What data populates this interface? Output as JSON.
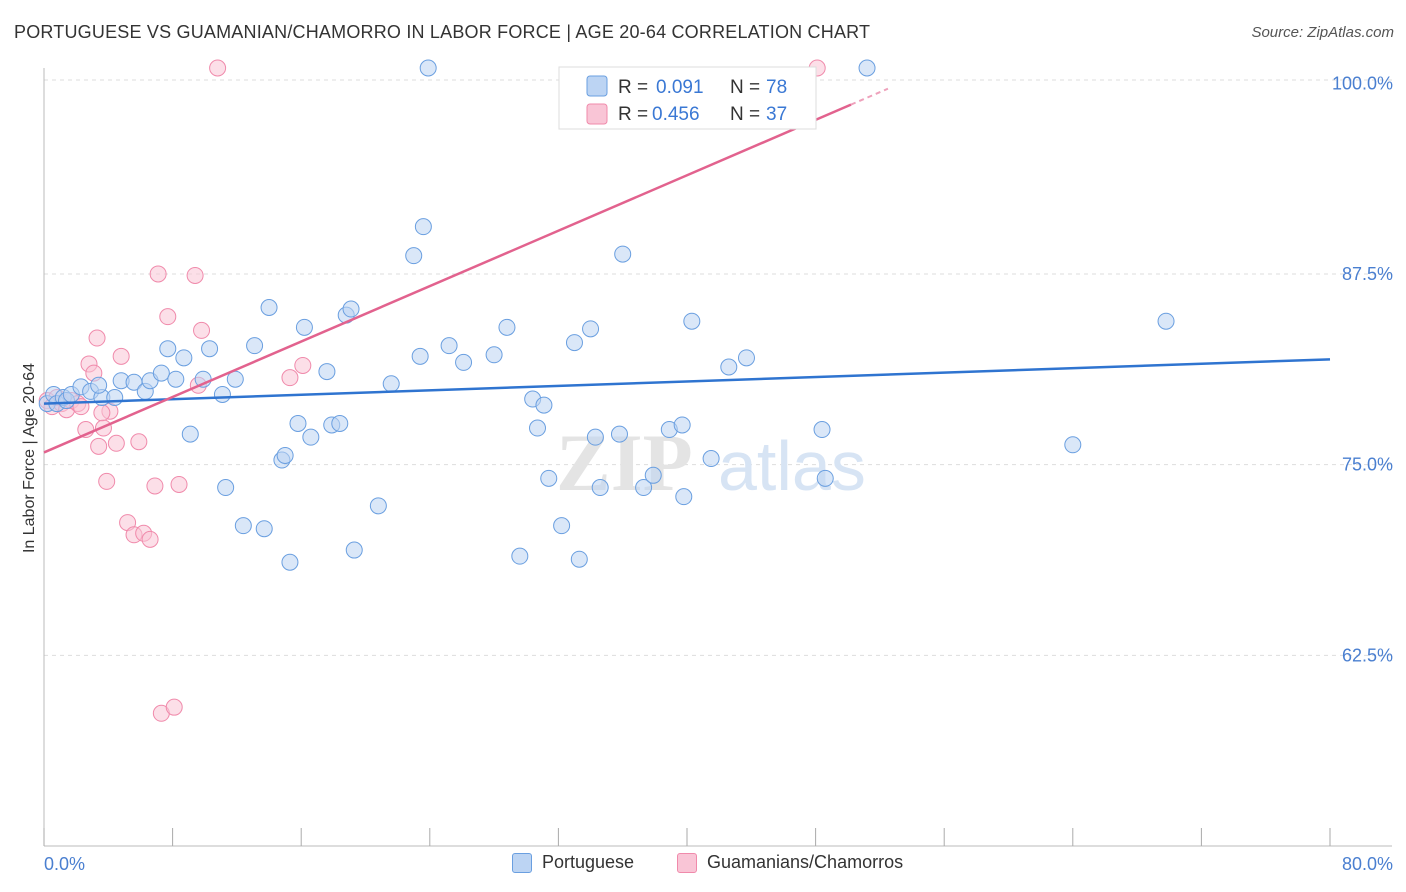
{
  "title": "PORTUGUESE VS GUAMANIAN/CHAMORRO IN LABOR FORCE | AGE 20-64 CORRELATION CHART",
  "source": "Source: ZipAtlas.com",
  "watermark": {
    "zip": "ZIP",
    "atlas": "atlas"
  },
  "legend": {
    "r_label": "R =",
    "n_label": "N =",
    "series": [
      {
        "name": "Portuguese",
        "r": "0.091",
        "n": "78"
      },
      {
        "name": "Guamanians/Chamorros",
        "r": "0.456",
        "n": "37"
      }
    ]
  },
  "chart_data": {
    "type": "scatter",
    "title": "PORTUGUESE VS GUAMANIAN/CHAMORRO IN LABOR FORCE | AGE 20-64 CORRELATION CHART",
    "xlabel": "",
    "ylabel": "In Labor Force | Age 20-64",
    "xlim": [
      0,
      80
    ],
    "ylim": [
      50,
      101
    ],
    "x_tick_labels": [
      "0.0%",
      "80.0%"
    ],
    "y_ticks": [
      62.5,
      75.0,
      87.5,
      100.0
    ],
    "y_tick_labels": [
      "62.5%",
      "75.0%",
      "87.5%",
      "100.0%"
    ],
    "grid": true,
    "legend_position": "top-center",
    "colors": {
      "Portuguese": "#6a9fe0",
      "Guamanians/Chamorros": "#f08aab",
      "blue_line": "#2f74d0",
      "pink_line": "#e2628e",
      "axis_text": "#4a7fd0"
    },
    "series": [
      {
        "name": "Portuguese",
        "r": 0.091,
        "n": 78,
        "trend": {
          "x0": 0,
          "y0": 79.0,
          "x1": 80,
          "y1": 81.9
        },
        "points": [
          [
            0.2,
            79.0
          ],
          [
            0.6,
            79.6
          ],
          [
            0.8,
            79.0
          ],
          [
            1.2,
            79.4
          ],
          [
            1.4,
            79.2
          ],
          [
            1.7,
            79.6
          ],
          [
            2.3,
            80.1
          ],
          [
            2.9,
            79.8
          ],
          [
            3.6,
            79.4
          ],
          [
            4.4,
            79.4
          ],
          [
            3.4,
            80.2
          ],
          [
            4.8,
            80.5
          ],
          [
            5.6,
            80.4
          ],
          [
            6.3,
            79.8
          ],
          [
            6.6,
            80.5
          ],
          [
            7.3,
            81.0
          ],
          [
            7.7,
            82.6
          ],
          [
            8.2,
            80.6
          ],
          [
            8.7,
            82.0
          ],
          [
            9.1,
            77.0
          ],
          [
            9.9,
            80.6
          ],
          [
            10.3,
            82.6
          ],
          [
            11.1,
            79.6
          ],
          [
            11.3,
            73.5
          ],
          [
            11.9,
            80.6
          ],
          [
            12.4,
            71.0
          ],
          [
            13.1,
            82.8
          ],
          [
            13.7,
            70.8
          ],
          [
            14.0,
            85.3
          ],
          [
            14.8,
            75.3
          ],
          [
            15.0,
            75.6
          ],
          [
            15.3,
            68.6
          ],
          [
            15.8,
            77.7
          ],
          [
            16.2,
            84.0
          ],
          [
            16.6,
            76.8
          ],
          [
            17.6,
            81.1
          ],
          [
            17.9,
            77.6
          ],
          [
            18.4,
            77.7
          ],
          [
            18.8,
            84.8
          ],
          [
            19.1,
            85.2
          ],
          [
            20.8,
            72.3
          ],
          [
            21.6,
            80.3
          ],
          [
            23.0,
            88.7
          ],
          [
            23.4,
            82.1
          ],
          [
            23.6,
            90.6
          ],
          [
            23.9,
            101.0
          ],
          [
            25.2,
            82.8
          ],
          [
            26.1,
            81.7
          ],
          [
            28.0,
            82.2
          ],
          [
            28.8,
            84.0
          ],
          [
            29.6,
            69.0
          ],
          [
            30.4,
            79.3
          ],
          [
            30.7,
            77.4
          ],
          [
            31.1,
            78.9
          ],
          [
            31.4,
            74.1
          ],
          [
            32.2,
            71.0
          ],
          [
            33.0,
            83.0
          ],
          [
            33.3,
            68.8
          ],
          [
            34.0,
            83.9
          ],
          [
            34.3,
            76.8
          ],
          [
            34.6,
            73.5
          ],
          [
            35.8,
            77.0
          ],
          [
            36.0,
            88.8
          ],
          [
            37.3,
            73.5
          ],
          [
            37.9,
            74.3
          ],
          [
            38.9,
            77.3
          ],
          [
            39.7,
            77.6
          ],
          [
            39.8,
            72.9
          ],
          [
            40.3,
            84.4
          ],
          [
            41.5,
            75.4
          ],
          [
            42.6,
            81.4
          ],
          [
            43.7,
            82.0
          ],
          [
            48.4,
            77.3
          ],
          [
            48.6,
            74.1
          ],
          [
            51.2,
            101.0
          ],
          [
            64.0,
            76.3
          ],
          [
            69.8,
            84.4
          ],
          [
            19.3,
            69.4
          ]
        ]
      },
      {
        "name": "Guamanians/Chamorros",
        "r": 0.456,
        "n": 37,
        "trend": {
          "x0": 0,
          "y0": 75.8,
          "x1": 50.2,
          "y1": 98.6
        },
        "points": [
          [
            0.2,
            79.2
          ],
          [
            0.5,
            78.8
          ],
          [
            0.8,
            79.4
          ],
          [
            1.1,
            79.0
          ],
          [
            1.4,
            78.6
          ],
          [
            1.7,
            79.2
          ],
          [
            2.1,
            79.0
          ],
          [
            2.3,
            78.8
          ],
          [
            2.6,
            77.3
          ],
          [
            2.8,
            81.6
          ],
          [
            3.1,
            81.0
          ],
          [
            3.3,
            83.3
          ],
          [
            3.4,
            76.2
          ],
          [
            3.7,
            77.4
          ],
          [
            3.9,
            73.9
          ],
          [
            4.1,
            78.5
          ],
          [
            4.5,
            76.4
          ],
          [
            4.8,
            82.1
          ],
          [
            5.2,
            71.2
          ],
          [
            5.6,
            70.4
          ],
          [
            5.9,
            76.5
          ],
          [
            6.2,
            70.5
          ],
          [
            6.6,
            70.1
          ],
          [
            6.9,
            73.6
          ],
          [
            7.1,
            87.5
          ],
          [
            7.3,
            58.7
          ],
          [
            7.7,
            84.7
          ],
          [
            8.1,
            59.1
          ],
          [
            8.4,
            73.7
          ],
          [
            9.4,
            87.4
          ],
          [
            9.6,
            80.2
          ],
          [
            9.8,
            83.8
          ],
          [
            10.8,
            101.0
          ],
          [
            15.3,
            80.7
          ],
          [
            16.1,
            81.5
          ],
          [
            48.1,
            101.0
          ],
          [
            3.6,
            78.4
          ]
        ]
      }
    ]
  }
}
